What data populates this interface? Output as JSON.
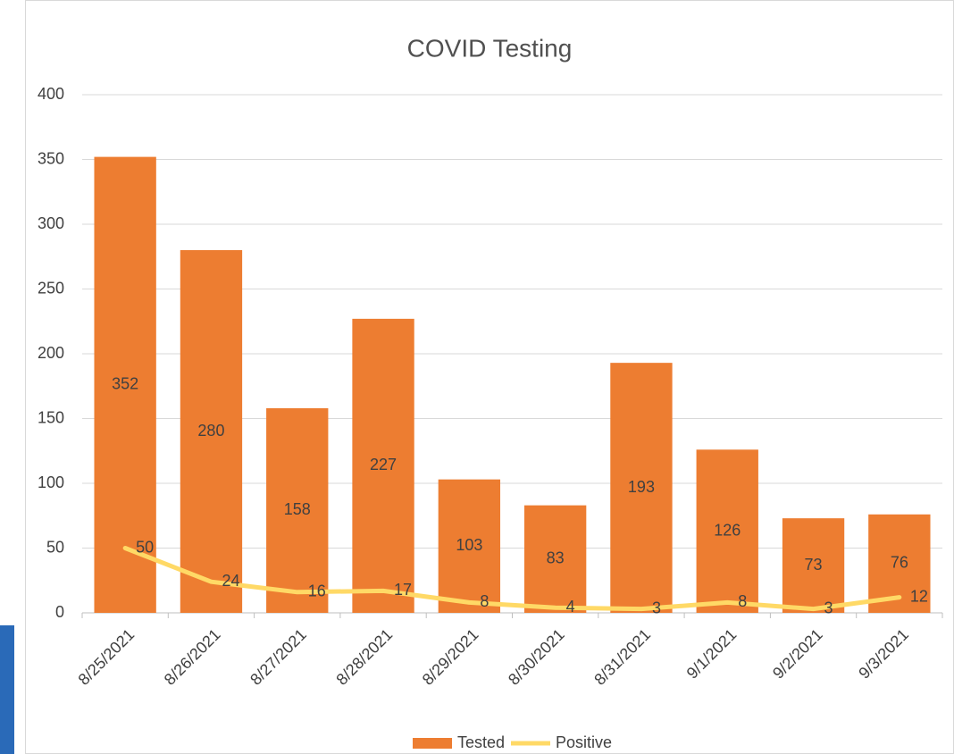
{
  "chart_data": {
    "type": "bar-line",
    "title": "COVID Testing",
    "categories": [
      "8/25/2021",
      "8/26/2021",
      "8/27/2021",
      "8/28/2021",
      "8/29/2021",
      "8/30/2021",
      "8/31/2021",
      "9/1/2021",
      "9/2/2021",
      "9/3/2021"
    ],
    "series": [
      {
        "name": "Tested",
        "type": "bar",
        "color": "#ed7d31",
        "values": [
          352,
          280,
          158,
          227,
          103,
          83,
          193,
          126,
          73,
          76
        ]
      },
      {
        "name": "Positive",
        "type": "line",
        "color": "#ffd966",
        "values": [
          50,
          24,
          16,
          17,
          8,
          4,
          3,
          8,
          3,
          12
        ]
      }
    ],
    "ylim": [
      0,
      400
    ],
    "yticks": [
      0,
      50,
      100,
      150,
      200,
      250,
      300,
      350,
      400
    ],
    "grid": true,
    "legend": "bottom"
  }
}
